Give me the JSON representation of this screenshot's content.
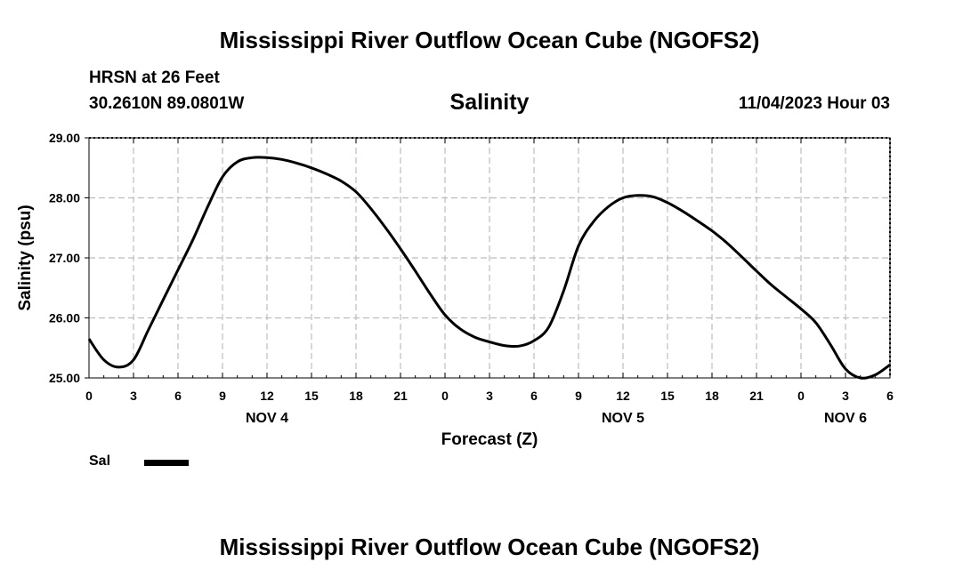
{
  "header": {
    "title": "Mississippi River Outflow Ocean Cube (NGOFS2)",
    "station": "HRSN at 26 Feet",
    "coordinates": "30.2610N  89.0801W",
    "panel_title": "Salinity",
    "datetime": "11/04/2023 Hour 03"
  },
  "footer": {
    "title": "Mississippi River Outflow Ocean Cube (NGOFS2)"
  },
  "legend": {
    "entries": [
      {
        "label": "Sal",
        "color": "#000000"
      }
    ]
  },
  "chart_data": {
    "type": "line",
    "xlabel": "Forecast (Z)",
    "ylabel": "Salinity (psu)",
    "xlim": [
      0,
      54
    ],
    "ylim": [
      25.0,
      29.0
    ],
    "grid": true,
    "legend_position": "bottom-left",
    "x_ticks": [
      0,
      3,
      6,
      9,
      12,
      15,
      18,
      21,
      24,
      27,
      30,
      33,
      36,
      39,
      42,
      45,
      48,
      51,
      54
    ],
    "x_tick_labels": [
      "0",
      "3",
      "6",
      "9",
      "12",
      "15",
      "18",
      "21",
      "0",
      "3",
      "6",
      "9",
      "12",
      "15",
      "18",
      "21",
      "0",
      "3",
      "6"
    ],
    "day_labels": [
      {
        "x": 12,
        "label": "NOV 4"
      },
      {
        "x": 36,
        "label": "NOV 5"
      },
      {
        "x": 51,
        "label": "NOV 6"
      }
    ],
    "y_ticks": [
      25.0,
      26.0,
      27.0,
      28.0,
      29.0
    ],
    "y_tick_labels": [
      "25.00",
      "26.00",
      "27.00",
      "28.00",
      "29.00"
    ],
    "series": [
      {
        "name": "Sal",
        "color": "#000000",
        "x": [
          0,
          1,
          2,
          3,
          4,
          5,
          6,
          7,
          8,
          9,
          10,
          11,
          12,
          13,
          14,
          15,
          16,
          17,
          18,
          19,
          20,
          21,
          22,
          23,
          24,
          25,
          26,
          27,
          28,
          29,
          30,
          31,
          32,
          33,
          34,
          35,
          36,
          37,
          38,
          39,
          40,
          41,
          42,
          43,
          44,
          45,
          46,
          47,
          48,
          49,
          50,
          51,
          52,
          53,
          54
        ],
        "y": [
          25.65,
          25.3,
          25.18,
          25.3,
          25.8,
          26.3,
          26.8,
          27.3,
          27.85,
          28.35,
          28.6,
          28.67,
          28.67,
          28.64,
          28.58,
          28.5,
          28.4,
          28.28,
          28.1,
          27.82,
          27.5,
          27.15,
          26.78,
          26.4,
          26.05,
          25.82,
          25.68,
          25.6,
          25.54,
          25.53,
          25.62,
          25.85,
          26.45,
          27.2,
          27.6,
          27.85,
          28.0,
          28.04,
          28.02,
          27.92,
          27.78,
          27.62,
          27.45,
          27.25,
          27.02,
          26.78,
          26.55,
          26.35,
          26.15,
          25.92,
          25.55,
          25.15,
          25.0,
          25.05,
          25.22
        ]
      }
    ]
  }
}
